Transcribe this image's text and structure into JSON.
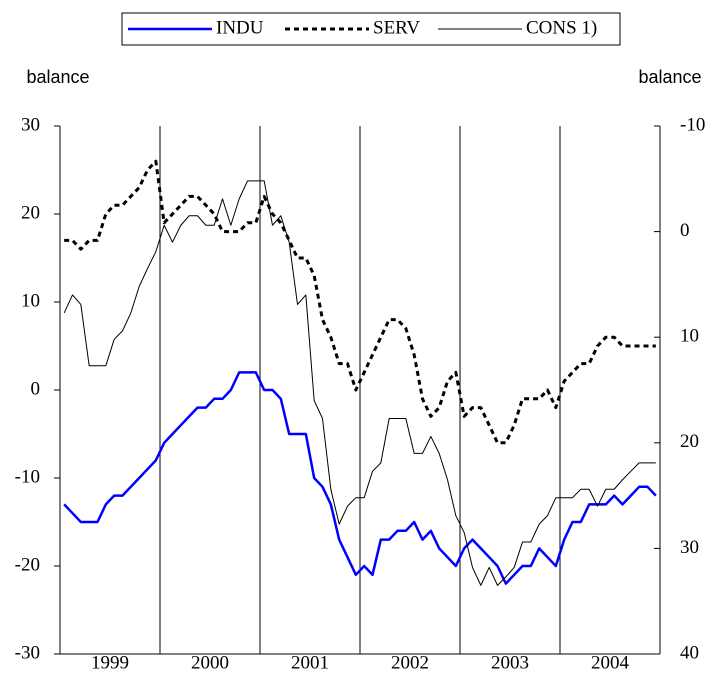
{
  "chart_data": {
    "type": "line",
    "left_axis_label": "balance",
    "right_axis_label": "balance",
    "categories": [
      null,
      null,
      null,
      null,
      null,
      null,
      "1999",
      null,
      null,
      null,
      null,
      null,
      null,
      null,
      null,
      null,
      null,
      null,
      "2000",
      null,
      null,
      null,
      null,
      null,
      null,
      null,
      null,
      null,
      null,
      null,
      "2001",
      null,
      null,
      null,
      null,
      null,
      null,
      null,
      null,
      null,
      null,
      null,
      "2002",
      null,
      null,
      null,
      null,
      null,
      null,
      null,
      null,
      null,
      null,
      null,
      "2003",
      null,
      null,
      null,
      null,
      null,
      null,
      null,
      null,
      null,
      null,
      null,
      "2004",
      null,
      null,
      null,
      null,
      null
    ],
    "series": [
      {
        "name": "INDU",
        "color": "#0000ff",
        "style": "thick",
        "values": [
          -13,
          -14,
          -15,
          -15,
          -15,
          -13,
          -12,
          -12,
          -11,
          -10,
          -9,
          -8,
          -6,
          -5,
          -4,
          -3,
          -2,
          -2,
          -1,
          -1,
          0,
          2,
          2,
          2,
          0,
          0,
          -1,
          -5,
          -5,
          -5,
          -10,
          -11,
          -13,
          -17,
          -19,
          -21,
          -20,
          -21,
          -17,
          -17,
          -16,
          -16,
          -15,
          -17,
          -16,
          -18,
          -19,
          -20,
          -18,
          -17,
          -18,
          -19,
          -20,
          -22,
          -21,
          -20,
          -20,
          -18,
          -19,
          -20,
          -17,
          -15,
          -15,
          -13,
          -13,
          -13,
          -12,
          -13,
          -12,
          -11,
          -11,
          -12
        ]
      },
      {
        "name": "SERV",
        "color": "#000000",
        "style": "dashed",
        "values": [
          17,
          17,
          16,
          17,
          17,
          20,
          21,
          21,
          22,
          23,
          25,
          26,
          19,
          20,
          21,
          22,
          22,
          21,
          20,
          18,
          18,
          18,
          19,
          19,
          22,
          20,
          19,
          17,
          15,
          15,
          13,
          8,
          6,
          3,
          3,
          0,
          2,
          4,
          6,
          8,
          8,
          7,
          4,
          -1,
          -3,
          -2,
          1,
          2,
          -3,
          -2,
          -2,
          -4,
          -6,
          -6,
          -4,
          -1,
          -1,
          -1,
          0,
          -2,
          1,
          2,
          3,
          3,
          5,
          6,
          6,
          5,
          5,
          5,
          5,
          5
        ]
      },
      {
        "name": "CONS 1)",
        "color": "#000000",
        "style": "thin",
        "axis": "y2",
        "values": [
          7.7,
          6.0,
          6.9,
          12.7,
          12.7,
          12.7,
          10.2,
          9.4,
          7.7,
          5.2,
          3.5,
          1.9,
          -0.6,
          1.0,
          -0.6,
          -1.5,
          -1.5,
          -0.6,
          -0.6,
          -3.1,
          -0.6,
          -3.1,
          -4.8,
          -4.8,
          -4.8,
          -0.6,
          -1.5,
          1.0,
          6.9,
          6.0,
          16.0,
          17.7,
          24.4,
          27.7,
          26.0,
          25.2,
          25.2,
          22.7,
          21.9,
          17.7,
          17.7,
          17.7,
          21.0,
          21.0,
          19.4,
          21.0,
          23.5,
          26.9,
          28.5,
          31.8,
          33.5,
          31.8,
          33.5,
          32.7,
          31.8,
          29.4,
          29.4,
          27.7,
          26.9,
          25.2,
          25.2,
          25.2,
          24.4,
          24.4,
          26.0,
          24.4,
          24.4,
          23.5,
          22.7,
          21.9,
          21.9,
          21.9
        ]
      }
    ],
    "ylim": [
      -30,
      30
    ],
    "yticks": [
      -30,
      -20,
      -10,
      0,
      10,
      20,
      30
    ],
    "y2lim": [
      -10,
      40
    ],
    "y2ticks": [
      -10,
      0,
      10,
      20,
      30,
      40
    ],
    "y2_inverted": true,
    "legend": "top"
  }
}
